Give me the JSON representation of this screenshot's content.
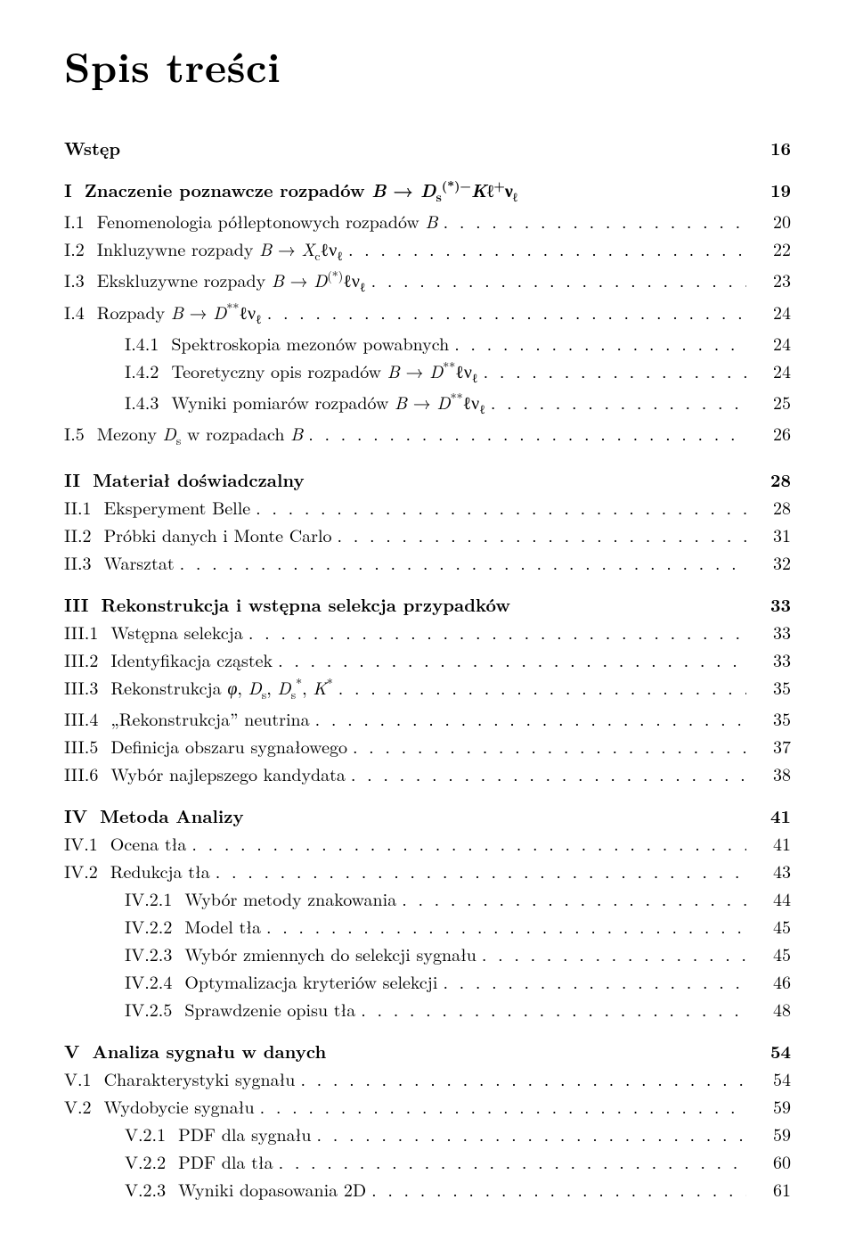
{
  "title": "Spis treści",
  "entries": [
    {
      "level": "chapter",
      "num": "",
      "label": "Wstęp",
      "page": "16"
    },
    {
      "level": "chapter",
      "num": "I",
      "label_html": "Znaczenie poznawcze rozpadów <i>B</i> → <i>D</i><span class='sub'>s</span><span class='sup'>(*)−</span><i>K</i>ℓ<span class='sup'>+</span>ν<span class='sub'>ℓ</span>",
      "page": "19"
    },
    {
      "level": "section",
      "num": "I.1",
      "label_html": "Fenomenologia półleptonowych rozpadów <i>B</i>",
      "page": "20"
    },
    {
      "level": "section",
      "num": "I.2",
      "label_html": "Inkluzywne rozpady <i>B</i> → <i>X</i><span class='sub'>c</span>ℓν<span class='sub'>ℓ</span>",
      "page": "22"
    },
    {
      "level": "section",
      "num": "I.3",
      "label_html": "Ekskluzywne rozpady <i>B</i> → <i>D</i><span class='sup'>(*)</span>ℓν<span class='sub'>ℓ</span>",
      "page": "23"
    },
    {
      "level": "section",
      "num": "I.4",
      "label_html": "Rozpady <i>B</i> → <i>D</i><span class='sup'>**</span>ℓν<span class='sub'>ℓ</span>",
      "page": "24"
    },
    {
      "level": "subsub",
      "num": "I.4.1",
      "label_html": "Spektroskopia mezonów powabnych",
      "page": "24"
    },
    {
      "level": "subsub",
      "num": "I.4.2",
      "label_html": "Teoretyczny opis rozpadów <i>B</i> → <i>D</i><span class='sup'>**</span>ℓν<span class='sub'>ℓ</span>",
      "page": "24"
    },
    {
      "level": "subsub",
      "num": "I.4.3",
      "label_html": "Wyniki pomiarów rozpadów <i>B</i> → <i>D</i><span class='sup'>**</span>ℓν<span class='sub'>ℓ</span>",
      "page": "25"
    },
    {
      "level": "section",
      "num": "I.5",
      "label_html": "Mezony <i>D</i><span class='sub'>s</span> w rozpadach <i>B</i>",
      "page": "26"
    },
    {
      "level": "chapter",
      "num": "II",
      "label_html": "Materiał doświadczalny",
      "page": "28"
    },
    {
      "level": "section",
      "num": "II.1",
      "label_html": "Eksperyment Belle",
      "page": "28"
    },
    {
      "level": "section",
      "num": "II.2",
      "label_html": "Próbki danych i Monte Carlo",
      "page": "31"
    },
    {
      "level": "section",
      "num": "II.3",
      "label_html": "Warsztat",
      "page": "32"
    },
    {
      "level": "chapter",
      "num": "III",
      "label_html": "Rekonstrukcja i wstępna selekcja przypadków",
      "page": "33"
    },
    {
      "level": "section",
      "num": "III.1",
      "label_html": "Wstępna selekcja",
      "page": "33"
    },
    {
      "level": "section",
      "num": "III.2",
      "label_html": "Identyfikacja cząstek",
      "page": "33"
    },
    {
      "level": "section",
      "num": "III.3",
      "label_html": "Rekonstrukcja <i>φ</i>, <i>D</i><span class='sub'>s</span>, <i>D</i><span class='sub'>s</span><span class='sup'>*</span>, <i>K</i><span class='sup'>*</span>",
      "page": "35"
    },
    {
      "level": "section",
      "num": "III.4",
      "label_html": "„Rekonstrukcja” neutrina",
      "page": "35"
    },
    {
      "level": "section",
      "num": "III.5",
      "label_html": "Definicja obszaru sygnałowego",
      "page": "37"
    },
    {
      "level": "section",
      "num": "III.6",
      "label_html": "Wybór najlepszego kandydata",
      "page": "38"
    },
    {
      "level": "chapter",
      "num": "IV",
      "label_html": "Metoda Analizy",
      "page": "41"
    },
    {
      "level": "section",
      "num": "IV.1",
      "label_html": "Ocena tła",
      "page": "41"
    },
    {
      "level": "section",
      "num": "IV.2",
      "label_html": "Redukcja tła",
      "page": "43"
    },
    {
      "level": "subsub",
      "num": "IV.2.1",
      "label_html": "Wybór metody znakowania",
      "page": "44"
    },
    {
      "level": "subsub",
      "num": "IV.2.2",
      "label_html": "Model tła",
      "page": "45"
    },
    {
      "level": "subsub",
      "num": "IV.2.3",
      "label_html": "Wybór zmiennych do selekcji sygnału",
      "page": "45"
    },
    {
      "level": "subsub",
      "num": "IV.2.4",
      "label_html": "Optymalizacja kryteriów selekcji",
      "page": "46"
    },
    {
      "level": "subsub",
      "num": "IV.2.5",
      "label_html": "Sprawdzenie opisu tła",
      "page": "48"
    },
    {
      "level": "chapter",
      "num": "V",
      "label_html": "Analiza sygnału w danych",
      "page": "54"
    },
    {
      "level": "section",
      "num": "V.1",
      "label_html": "Charakterystyki sygnału",
      "page": "54"
    },
    {
      "level": "section",
      "num": "V.2",
      "label_html": "Wydobycie sygnału",
      "page": "59"
    },
    {
      "level": "subsub",
      "num": "V.2.1",
      "label_html": "PDF dla sygnału",
      "page": "59"
    },
    {
      "level": "subsub",
      "num": "V.2.2",
      "label_html": "PDF dla tła",
      "page": "60"
    },
    {
      "level": "subsub",
      "num": "V.2.3",
      "label_html": "Wyniki dopasowania 2D",
      "page": "61"
    }
  ]
}
